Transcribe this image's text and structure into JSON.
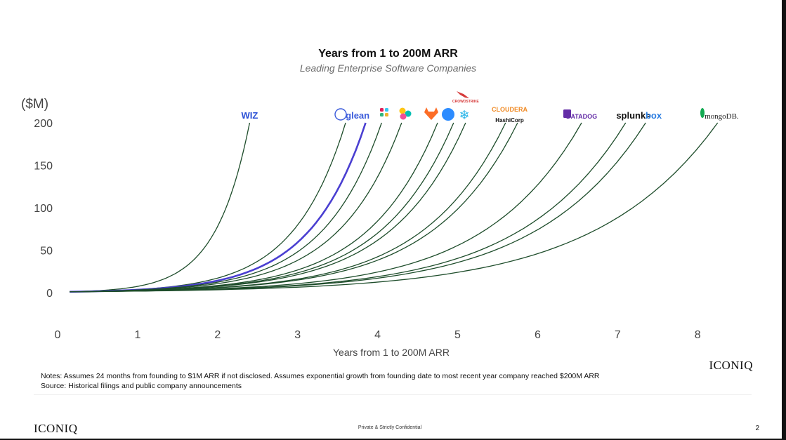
{
  "chart_data": {
    "type": "line",
    "title": "Years from 1 to 200M ARR",
    "subtitle": "Leading Enterprise Software Companies",
    "xlabel": "Years from 1 to 200M ARR",
    "ylabel": "($M)",
    "xlim": [
      0,
      8.6
    ],
    "ylim": [
      0,
      200
    ],
    "xticks": [
      0,
      1,
      2,
      3,
      4,
      5,
      6,
      7,
      8
    ],
    "yticks": [
      0,
      50,
      100,
      150,
      200
    ],
    "grid": false,
    "legend": "none",
    "colors": {
      "default_line": "#1e4d2b",
      "highlight_line": "#4a3fd1"
    },
    "series": [
      {
        "end_year": 2.4,
        "highlight": false
      },
      {
        "end_year": 3.6,
        "highlight": false
      },
      {
        "end_year": 3.85,
        "highlight": true
      },
      {
        "end_year": 4.05,
        "highlight": false
      },
      {
        "end_year": 4.3,
        "highlight": false
      },
      {
        "end_year": 4.75,
        "highlight": false
      },
      {
        "end_year": 4.95,
        "highlight": false
      },
      {
        "end_year": 5.1,
        "highlight": false
      },
      {
        "end_year": 5.6,
        "highlight": false
      },
      {
        "end_year": 5.75,
        "highlight": false
      },
      {
        "end_year": 6.55,
        "highlight": false
      },
      {
        "end_year": 7.1,
        "highlight": false
      },
      {
        "end_year": 7.35,
        "highlight": false
      },
      {
        "end_year": 8.25,
        "highlight": false
      }
    ],
    "logos": [
      {
        "label": "WIZ",
        "year": 2.4,
        "color": "#2a4fd6"
      },
      {
        "label": "glean",
        "year": 3.75,
        "color": "#3b5bdb"
      },
      {
        "label": "CROWDSTRIKE",
        "year": 5.1,
        "color": "#d63a3a"
      },
      {
        "label": "CLOUDERA",
        "year": 5.65,
        "color": "#f08a24"
      },
      {
        "label": "HashiCorp",
        "year": 5.65,
        "color": "#111111"
      },
      {
        "label": "DATADOG",
        "year": 6.55,
        "color": "#632ca6"
      },
      {
        "label": "splunk>",
        "year": 7.2,
        "color": "#111111"
      },
      {
        "label": "box",
        "year": 7.45,
        "color": "#2a7de1"
      },
      {
        "label": "mongoDB.",
        "year": 8.3,
        "color": "#222222"
      }
    ]
  },
  "notes": {
    "line1": "Notes: Assumes 24 months from founding to $1M ARR if not disclosed. Assumes exponential growth from founding date to most recent year company reached $200M ARR",
    "line2": "Source: Historical filings and public company announcements"
  },
  "footer": {
    "brand_right": "ICONIQ",
    "brand_left": "ICONIQ",
    "confidential": "Private & Strictly Confidential",
    "page_number": "2"
  }
}
